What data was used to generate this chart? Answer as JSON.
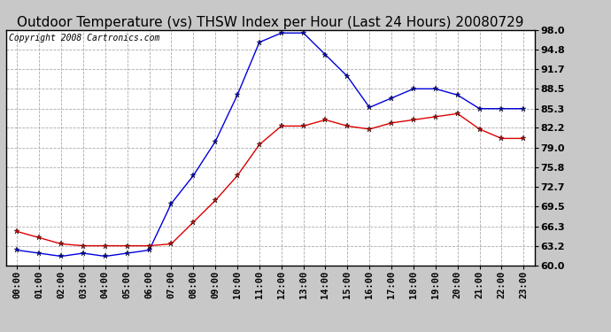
{
  "title": "Outdoor Temperature (vs) THSW Index per Hour (Last 24 Hours) 20080729",
  "copyright": "Copyright 2008 Cartronics.com",
  "hours": [
    "00:00",
    "01:00",
    "02:00",
    "03:00",
    "04:00",
    "05:00",
    "06:00",
    "07:00",
    "08:00",
    "09:00",
    "10:00",
    "11:00",
    "12:00",
    "13:00",
    "14:00",
    "15:00",
    "16:00",
    "17:00",
    "18:00",
    "19:00",
    "20:00",
    "21:00",
    "22:00",
    "23:00"
  ],
  "thsw": [
    62.5,
    62.0,
    61.5,
    62.0,
    61.5,
    62.0,
    62.5,
    70.0,
    74.5,
    80.0,
    87.5,
    96.0,
    97.5,
    97.5,
    94.0,
    90.5,
    85.5,
    87.0,
    88.5,
    88.5,
    87.5,
    85.3,
    85.3,
    85.3
  ],
  "temp": [
    65.5,
    64.5,
    63.5,
    63.2,
    63.2,
    63.2,
    63.2,
    63.5,
    67.0,
    70.5,
    74.5,
    79.5,
    82.5,
    82.5,
    83.5,
    82.5,
    82.0,
    83.0,
    83.5,
    84.0,
    84.5,
    82.0,
    80.5,
    80.5
  ],
  "ylim_min": 60.0,
  "ylim_max": 98.0,
  "yticks": [
    60.0,
    63.2,
    66.3,
    69.5,
    72.7,
    75.8,
    79.0,
    82.2,
    85.3,
    88.5,
    91.7,
    94.8,
    98.0
  ],
  "outer_bg": "#c8c8c8",
  "plot_bg": "#ffffff",
  "grid_color": "#aaaaaa",
  "thsw_color": "#0000dd",
  "temp_color": "#dd0000",
  "title_fontsize": 11,
  "copyright_fontsize": 7,
  "tick_fontsize": 7.5,
  "ytick_fontsize": 8
}
